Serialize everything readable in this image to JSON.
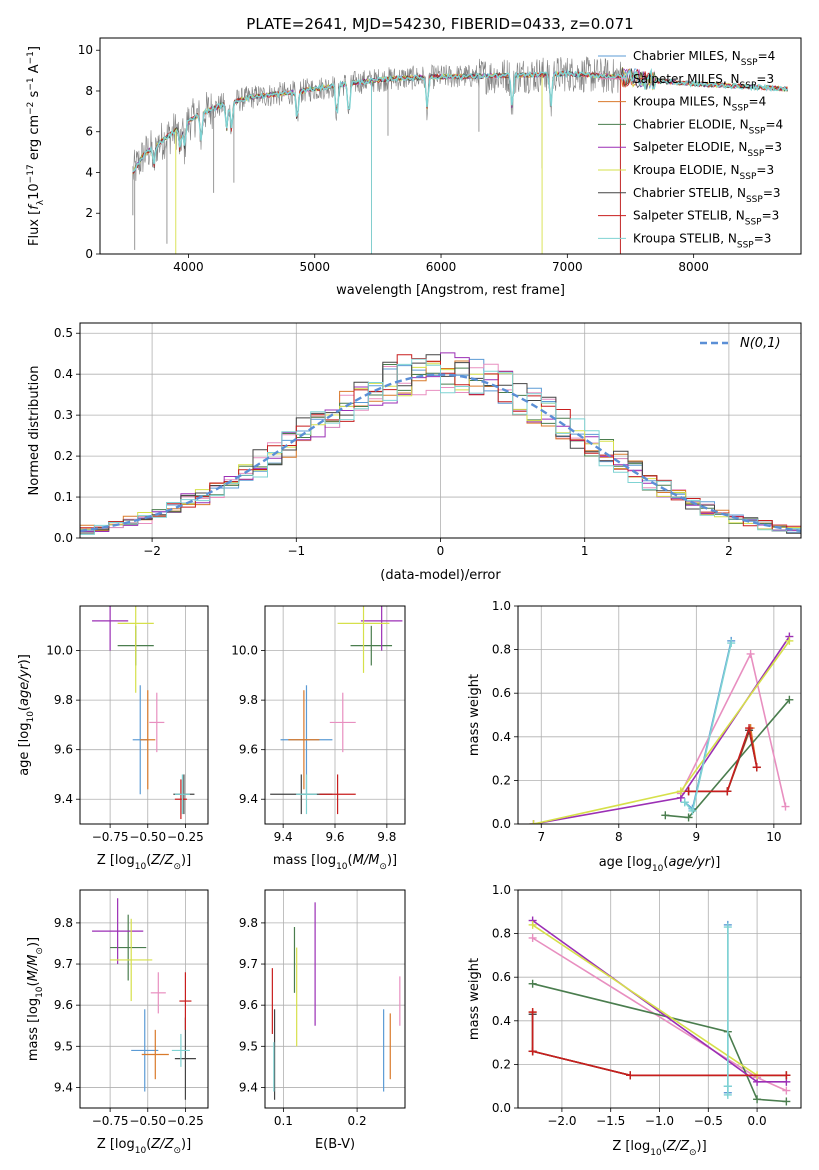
{
  "figure_title": "PLATE=2641, MJD=54230, FIBERID=0433, z=0.071",
  "colors": {
    "chabrier_miles": "#5b9bd5",
    "salpeter_miles": "#e88fc0",
    "kroupa_miles": "#d97a2b",
    "chabrier_elodie": "#4a7d4e",
    "salpeter_elodie": "#9b2fb5",
    "kroupa_elodie": "#d6e04a",
    "chabrier_stelib": "#444444",
    "salpeter_stelib": "#c81e1e",
    "kroupa_stelib": "#7fd3d3",
    "data": "#808080"
  },
  "chart_data": [
    {
      "id": "spectrum",
      "type": "line",
      "xlabel": "wavelength [Angstrom, rest frame]",
      "ylabel": "Flux [f_λ 10^-17 erg cm^-2 s^-1 A^-1]",
      "xlim": [
        3300,
        8850
      ],
      "ylim": [
        0,
        10.6
      ],
      "xticks": [
        4000,
        5000,
        6000,
        7000,
        8000
      ],
      "yticks": [
        0,
        2,
        4,
        6,
        8,
        10
      ],
      "grid": false,
      "legend_position": "right",
      "legend": [
        {
          "name": "Chabrier MILES",
          "nssp": "4"
        },
        {
          "name": "Salpeter MILES",
          "nssp": "3"
        },
        {
          "name": "Kroupa MILES",
          "nssp": "4"
        },
        {
          "name": "Chabrier ELODIE",
          "nssp": "4"
        },
        {
          "name": "Salpeter ELODIE",
          "nssp": "3"
        },
        {
          "name": "Kroupa ELODIE",
          "nssp": "3"
        },
        {
          "name": "Chabrier STELIB",
          "nssp": "3"
        },
        {
          "name": "Salpeter STELIB",
          "nssp": "3"
        },
        {
          "name": "Kroupa STELIB",
          "nssp": "3"
        }
      ],
      "continuum_x": [
        3560,
        3650,
        3800,
        3950,
        4100,
        4300,
        4500,
        4800,
        5000,
        5300,
        5600,
        6000,
        6500,
        7000,
        7400,
        7700,
        8000,
        8300,
        8750
      ],
      "continuum_y": [
        4.0,
        4.9,
        5.6,
        6.3,
        6.9,
        7.4,
        7.7,
        7.9,
        8.1,
        8.4,
        8.6,
        8.7,
        8.75,
        8.85,
        8.7,
        8.5,
        8.35,
        8.25,
        8.1
      ]
    },
    {
      "id": "residual-histogram",
      "type": "bar",
      "xlabel": "(data-model)/error",
      "ylabel": "Normed distribution",
      "xlim": [
        -2.5,
        2.5
      ],
      "ylim": [
        0,
        0.525
      ],
      "xticks": [
        -2,
        -1,
        0,
        1,
        2
      ],
      "yticks": [
        0.0,
        0.1,
        0.2,
        0.3,
        0.4,
        0.5
      ],
      "grid": true,
      "legend_label": "N(0,1)",
      "legend_position": "top-right"
    },
    {
      "id": "age-vs-z",
      "type": "scatter",
      "xlabel": "Z [log10(Z/Z⊙)]",
      "ylabel": "age  [log10(age/yr)]",
      "xlim": [
        -0.95,
        -0.1
      ],
      "ylim": [
        9.3,
        10.18
      ],
      "xticks": [
        -0.75,
        -0.5,
        -0.25
      ],
      "xtick_labels": [
        "−0.75",
        "−0.50",
        "−0.25"
      ],
      "yticks": [
        9.4,
        9.6,
        9.8,
        10.0
      ],
      "points": [
        {
          "c": "chabrier_miles",
          "x": -0.55,
          "xerr": 0.05,
          "y": 9.64,
          "yerr": 0.22
        },
        {
          "c": "salpeter_miles",
          "x": -0.44,
          "xerr": 0.05,
          "y": 9.71,
          "yerr": 0.12
        },
        {
          "c": "kroupa_miles",
          "x": -0.5,
          "xerr": 0.05,
          "y": 9.64,
          "yerr": 0.2
        },
        {
          "c": "chabrier_elodie",
          "x": -0.58,
          "xerr": 0.12,
          "y": 10.02,
          "yerr": 0.08
        },
        {
          "c": "salpeter_elodie",
          "x": -0.75,
          "xerr": 0.12,
          "y": 10.12,
          "yerr": 0.12
        },
        {
          "c": "kroupa_elodie",
          "x": -0.58,
          "xerr": 0.12,
          "y": 10.11,
          "yerr": 0.28
        },
        {
          "c": "chabrier_stelib",
          "x": -0.26,
          "xerr": 0.07,
          "y": 9.42,
          "yerr": 0.08
        },
        {
          "c": "salpeter_stelib",
          "x": -0.28,
          "xerr": 0.04,
          "y": 9.4,
          "yerr": 0.08
        },
        {
          "c": "kroupa_stelib",
          "x": -0.27,
          "xerr": 0.05,
          "y": 9.42,
          "yerr": 0.08
        }
      ]
    },
    {
      "id": "age-vs-mass",
      "type": "scatter",
      "xlabel": "mass [log10(M/M⊙)]",
      "ylabel": "",
      "xlim": [
        9.33,
        9.87
      ],
      "ylim": [
        9.3,
        10.18
      ],
      "xticks": [
        9.4,
        9.6,
        9.8
      ],
      "xtick_labels": [
        "9.4",
        "9.6",
        "9.8"
      ],
      "yticks": [
        9.4,
        9.6,
        9.8,
        10.0
      ],
      "points": [
        {
          "c": "chabrier_miles",
          "x": 9.49,
          "xerr": 0.1,
          "y": 9.64,
          "yerr": 0.22
        },
        {
          "c": "salpeter_miles",
          "x": 9.63,
          "xerr": 0.05,
          "y": 9.71,
          "yerr": 0.12
        },
        {
          "c": "kroupa_miles",
          "x": 9.48,
          "xerr": 0.06,
          "y": 9.64,
          "yerr": 0.2
        },
        {
          "c": "chabrier_elodie",
          "x": 9.74,
          "xerr": 0.08,
          "y": 10.02,
          "yerr": 0.08
        },
        {
          "c": "salpeter_elodie",
          "x": 9.78,
          "xerr": 0.08,
          "y": 10.12,
          "yerr": 0.12
        },
        {
          "c": "kroupa_elodie",
          "x": 9.71,
          "xerr": 0.1,
          "y": 10.11,
          "yerr": 0.2
        },
        {
          "c": "chabrier_stelib",
          "x": 9.47,
          "xerr": 0.12,
          "y": 9.42,
          "yerr": 0.08
        },
        {
          "c": "salpeter_stelib",
          "x": 9.61,
          "xerr": 0.07,
          "y": 9.42,
          "yerr": 0.08
        },
        {
          "c": "kroupa_stelib",
          "x": 9.49,
          "xerr": 0.04,
          "y": 9.42,
          "yerr": 0.08
        }
      ]
    },
    {
      "id": "mass-weight-vs-age",
      "type": "line",
      "xlabel": "age  [log10(age/yr)]",
      "ylabel": "mass weight",
      "xlim": [
        6.7,
        10.35
      ],
      "ylim": [
        0,
        1
      ],
      "xticks": [
        7,
        8,
        9,
        10
      ],
      "xtick_labels": [
        "7",
        "8",
        "9",
        "10"
      ],
      "yticks": [
        0.0,
        0.2,
        0.4,
        0.6,
        0.8,
        1.0
      ],
      "series": [
        {
          "c": "chabrier_miles",
          "x": [
            8.85,
            8.95,
            9.45
          ],
          "y": [
            0.1,
            0.07,
            0.84
          ]
        },
        {
          "c": "salpeter_miles",
          "x": [
            8.8,
            9.7,
            10.15
          ],
          "y": [
            0.14,
            0.78,
            0.08
          ]
        },
        {
          "c": "kroupa_miles",
          "x": [
            8.9,
            9.4,
            9.7,
            9.78
          ],
          "y": [
            0.15,
            0.15,
            0.44,
            0.26
          ]
        },
        {
          "c": "chabrier_elodie",
          "x": [
            8.6,
            8.9,
            10.2
          ],
          "y": [
            0.04,
            0.03,
            0.57
          ]
        },
        {
          "c": "salpeter_elodie",
          "x": [
            6.9,
            8.8,
            10.2
          ],
          "y": [
            0.0,
            0.12,
            0.86
          ]
        },
        {
          "c": "kroupa_elodie",
          "x": [
            6.9,
            8.8,
            10.2
          ],
          "y": [
            0.0,
            0.15,
            0.84
          ]
        },
        {
          "c": "chabrier_stelib",
          "x": [
            8.9,
            9.4,
            9.68,
            9.78
          ],
          "y": [
            0.15,
            0.15,
            0.43,
            0.26
          ]
        },
        {
          "c": "salpeter_stelib",
          "x": [
            8.9,
            9.4,
            9.68,
            9.78
          ],
          "y": [
            0.15,
            0.15,
            0.44,
            0.26
          ]
        },
        {
          "c": "kroupa_stelib",
          "x": [
            8.85,
            8.95,
            9.45
          ],
          "y": [
            0.1,
            0.06,
            0.83
          ]
        }
      ]
    },
    {
      "id": "mass-vs-z",
      "type": "scatter",
      "xlabel": "Z [log10(Z/Z⊙)]",
      "ylabel": "mass [log10(M/M⊙)]",
      "xlim": [
        -0.95,
        -0.1
      ],
      "ylim": [
        9.35,
        9.88
      ],
      "xticks": [
        -0.75,
        -0.5,
        -0.25
      ],
      "xtick_labels": [
        "−0.75",
        "−0.50",
        "−0.25"
      ],
      "yticks": [
        9.4,
        9.5,
        9.6,
        9.7,
        9.8
      ],
      "points": [
        {
          "c": "chabrier_miles",
          "x": -0.52,
          "xerr": 0.09,
          "y": 9.49,
          "yerr": 0.1
        },
        {
          "c": "salpeter_miles",
          "x": -0.43,
          "xerr": 0.05,
          "y": 9.63,
          "yerr": 0.05
        },
        {
          "c": "kroupa_miles",
          "x": -0.45,
          "xerr": 0.09,
          "y": 9.48,
          "yerr": 0.06
        },
        {
          "c": "chabrier_elodie",
          "x": -0.63,
          "xerr": 0.12,
          "y": 9.74,
          "yerr": 0.08
        },
        {
          "c": "salpeter_elodie",
          "x": -0.7,
          "xerr": 0.17,
          "y": 9.78,
          "yerr": 0.08
        },
        {
          "c": "kroupa_elodie",
          "x": -0.61,
          "xerr": 0.14,
          "y": 9.71,
          "yerr": 0.1
        },
        {
          "c": "chabrier_stelib",
          "x": -0.25,
          "xerr": 0.07,
          "y": 9.47,
          "yerr": 0.1
        },
        {
          "c": "salpeter_stelib",
          "x": -0.25,
          "xerr": 0.04,
          "y": 9.61,
          "yerr": 0.07
        },
        {
          "c": "kroupa_stelib",
          "x": -0.28,
          "xerr": 0.06,
          "y": 9.49,
          "yerr": 0.04
        }
      ]
    },
    {
      "id": "mass-vs-ebv",
      "type": "scatter",
      "xlabel": "E(B-V)",
      "ylabel": "",
      "xlim": [
        0.075,
        0.265
      ],
      "ylim": [
        9.35,
        9.88
      ],
      "xticks": [
        0.1,
        0.2
      ],
      "xtick_labels": [
        "0.1",
        "0.2"
      ],
      "yticks": [
        9.4,
        9.5,
        9.6,
        9.7,
        9.8
      ],
      "points": [
        {
          "c": "chabrier_miles",
          "x": 0.236,
          "xerr": 0,
          "y": 9.49,
          "yerr": 0.1
        },
        {
          "c": "salpeter_miles",
          "x": 0.258,
          "xerr": 0,
          "y": 9.61,
          "yerr": 0.06
        },
        {
          "c": "kroupa_miles",
          "x": 0.245,
          "xerr": 0,
          "y": 9.5,
          "yerr": 0.08
        },
        {
          "c": "chabrier_elodie",
          "x": 0.115,
          "xerr": 0,
          "y": 9.71,
          "yerr": 0.08
        },
        {
          "c": "salpeter_elodie",
          "x": 0.143,
          "xerr": 0,
          "y": 9.7,
          "yerr": 0.15
        },
        {
          "c": "kroupa_elodie",
          "x": 0.118,
          "xerr": 0,
          "y": 9.62,
          "yerr": 0.12
        },
        {
          "c": "chabrier_stelib",
          "x": 0.088,
          "xerr": 0,
          "y": 9.48,
          "yerr": 0.11
        },
        {
          "c": "salpeter_stelib",
          "x": 0.085,
          "xerr": 0,
          "y": 9.61,
          "yerr": 0.08
        },
        {
          "c": "kroupa_stelib",
          "x": 0.087,
          "xerr": 0,
          "y": 9.45,
          "yerr": 0.06
        }
      ]
    },
    {
      "id": "mass-weight-vs-z",
      "type": "line",
      "xlabel": "Z [log10(Z/Z⊙)]",
      "ylabel": "mass weight",
      "xlim": [
        -2.45,
        0.45
      ],
      "ylim": [
        0,
        1
      ],
      "xticks": [
        -2.0,
        -1.5,
        -1.0,
        -0.5,
        0.0
      ],
      "xtick_labels": [
        "−2.0",
        "−1.5",
        "−1.0",
        "−0.5",
        "0.0"
      ],
      "yticks": [
        0.0,
        0.2,
        0.4,
        0.6,
        0.8,
        1.0
      ],
      "series": [
        {
          "c": "chabrier_miles",
          "x": [
            -0.3,
            -0.3,
            -0.3
          ],
          "y": [
            0.1,
            0.07,
            0.84
          ]
        },
        {
          "c": "salpeter_miles",
          "x": [
            -2.3,
            0.0,
            0.3
          ],
          "y": [
            0.78,
            0.14,
            0.08
          ]
        },
        {
          "c": "kroupa_miles",
          "x": [
            -2.3,
            -2.3,
            -1.3,
            0.3
          ],
          "y": [
            0.44,
            0.26,
            0.15,
            0.15
          ]
        },
        {
          "c": "chabrier_elodie",
          "x": [
            -2.3,
            -0.3,
            0.0,
            0.3
          ],
          "y": [
            0.57,
            0.35,
            0.04,
            0.03
          ]
        },
        {
          "c": "salpeter_elodie",
          "x": [
            -2.3,
            0.0,
            0.3
          ],
          "y": [
            0.86,
            0.12,
            0.12
          ]
        },
        {
          "c": "kroupa_elodie",
          "x": [
            -2.3,
            0.0,
            0.3
          ],
          "y": [
            0.84,
            0.15,
            0.15
          ]
        },
        {
          "c": "chabrier_stelib",
          "x": [
            -2.3,
            -2.3,
            -1.3,
            0.3
          ],
          "y": [
            0.43,
            0.26,
            0.15,
            0.15
          ]
        },
        {
          "c": "salpeter_stelib",
          "x": [
            -2.3,
            -2.3,
            -1.3,
            0.3
          ],
          "y": [
            0.44,
            0.26,
            0.15,
            0.15
          ]
        },
        {
          "c": "kroupa_stelib",
          "x": [
            -0.3,
            -0.3,
            -0.3
          ],
          "y": [
            0.1,
            0.06,
            0.83
          ]
        }
      ]
    }
  ]
}
